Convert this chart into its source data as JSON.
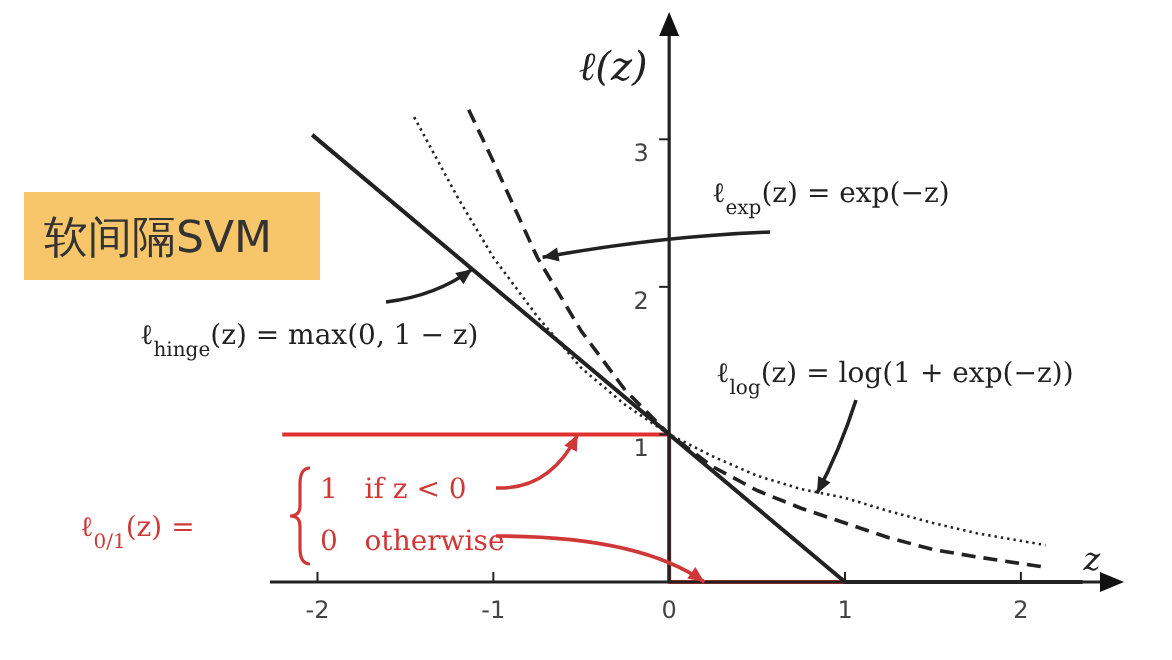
{
  "chart_data": {
    "type": "line",
    "xlim": [
      -2.27,
      2.45
    ],
    "ylim": [
      0,
      3.7
    ],
    "xticks": [
      -2,
      -1,
      0,
      1,
      2
    ],
    "yticks": [
      1,
      2,
      3
    ],
    "xlabel": "z",
    "ylabel": "ℓ(z)",
    "grid": false,
    "series": [
      {
        "color": "#e03030",
        "line_style": "solid",
        "x": [
          -2.2,
          0,
          0,
          2.35
        ],
        "values": [
          1,
          1,
          0,
          0
        ]
      },
      {
        "color": "#222222",
        "line_style": "solid",
        "x": [
          -2.03,
          1,
          2.35
        ],
        "values": [
          3.03,
          0,
          0
        ]
      },
      {
        "color": "#222222",
        "line_style": "dotted",
        "x": [
          -1.45,
          -1.2,
          -1,
          -0.75,
          -0.5,
          -0.25,
          0,
          0.25,
          0.5,
          0.75,
          1,
          1.25,
          1.5,
          1.75,
          2.14
        ],
        "values": [
          3.15,
          2.6,
          2.2,
          1.8,
          1.45,
          1.2,
          1.0,
          0.85,
          0.72,
          0.63,
          0.57,
          0.48,
          0.4,
          0.33,
          0.25
        ]
      },
      {
        "color": "#222222",
        "line_style": "dashed",
        "x": [
          -1.14,
          -1,
          -0.75,
          -0.5,
          -0.25,
          0,
          0.25,
          0.5,
          0.75,
          1,
          1.25,
          1.5,
          1.75,
          2.14
        ],
        "values": [
          3.2,
          2.85,
          2.2,
          1.7,
          1.3,
          1.0,
          0.78,
          0.62,
          0.5,
          0.4,
          0.3,
          0.22,
          0.17,
          0.1
        ]
      }
    ],
    "annotations": [
      "软间隔SVM",
      {
        "text": "ℓ$_{hinge}$(z) = max(0, 1 − z)",
        "x": -1.12,
        "y": 2.12
      },
      {
        "text": "ℓ$_{exp}$(z) = exp(−z)",
        "x": -0.72,
        "y": 2.2
      },
      {
        "text": "ℓ$_{log}$(z) = log(1 + exp(−z))",
        "x": 0.84,
        "y": 0.6
      },
      "ℓ$_{0/1}$(z) =",
      {
        "text": "1   if z < 0",
        "x": -0.52,
        "y": 1
      },
      {
        "text": "0   otherwise",
        "x": 0.2,
        "y": 0
      }
    ]
  }
}
